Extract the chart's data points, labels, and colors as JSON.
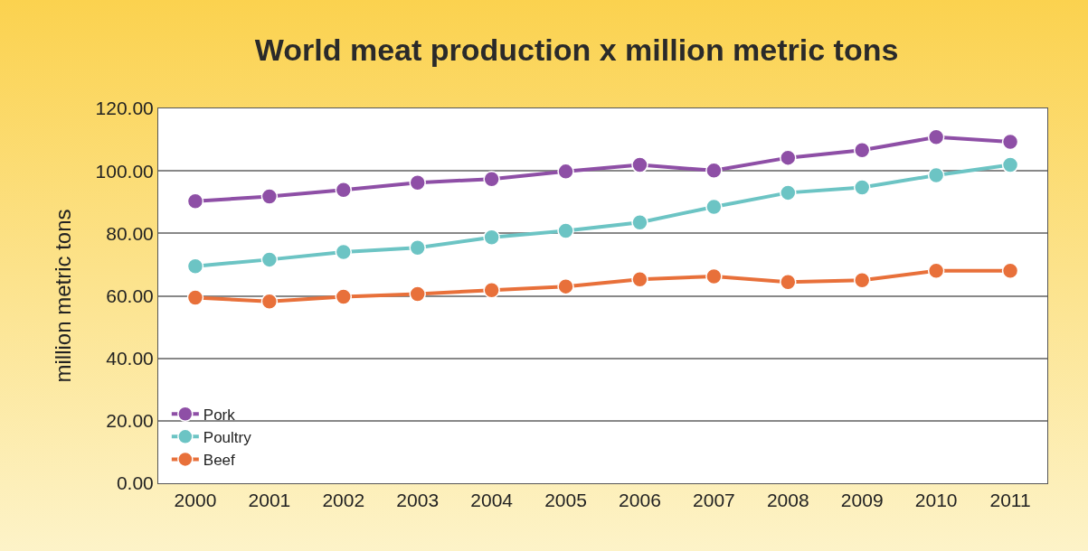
{
  "chart_data": {
    "type": "line",
    "title": "World meat production x million metric tons",
    "ylabel": "million metric tons",
    "categories": [
      "2000",
      "2001",
      "2002",
      "2003",
      "2004",
      "2005",
      "2006",
      "2007",
      "2008",
      "2009",
      "2010",
      "2011"
    ],
    "series": [
      {
        "name": "Pork",
        "color": "#8e4fa6",
        "values": [
          90.3,
          91.8,
          93.9,
          96.2,
          97.4,
          99.8,
          101.9,
          100.1,
          104.2,
          106.6,
          110.8,
          109.3
        ]
      },
      {
        "name": "Poultry",
        "color": "#6cc4c4",
        "values": [
          69.5,
          71.6,
          74,
          75.4,
          78.7,
          80.8,
          83.5,
          88.5,
          93,
          94.7,
          98.6,
          101.9
        ]
      },
      {
        "name": "Beef",
        "color": "#e8703a",
        "values": [
          59.4,
          58.2,
          59.7,
          60.6,
          61.8,
          63,
          65.3,
          66.2,
          64.4,
          65,
          68,
          68
        ]
      }
    ],
    "ylim": [
      0,
      120
    ],
    "yticks": [
      {
        "value": 0,
        "label": "0.00"
      },
      {
        "value": 20,
        "label": "20.00"
      },
      {
        "value": 40,
        "label": "40.00"
      },
      {
        "value": 60,
        "label": "60.00"
      },
      {
        "value": 80,
        "label": "80.00"
      },
      {
        "value": 100,
        "label": "100.00"
      },
      {
        "value": 120,
        "label": "120.00"
      }
    ],
    "grid": "y",
    "legend": "bottom left",
    "marker": "circle",
    "line_style": "solid"
  }
}
